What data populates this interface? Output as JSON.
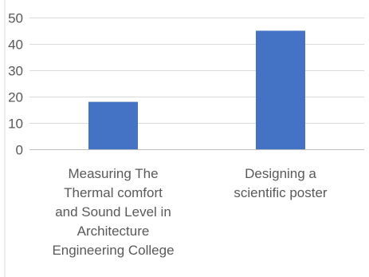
{
  "chart_data": {
    "type": "bar",
    "categories": [
      [
        "Measuring The",
        "Thermal comfort",
        "and Sound Level in",
        "Architecture",
        "Engineering College"
      ],
      [
        "Designing a",
        "scientific poster"
      ]
    ],
    "values": [
      18,
      45
    ],
    "yticks": [
      "0",
      "10",
      "20",
      "30",
      "40",
      "50"
    ],
    "ylim": [
      0,
      50
    ],
    "grid": true,
    "legend": "none",
    "title": "",
    "xlabel": "",
    "ylabel": "",
    "colors": {
      "bar": "#4472C4",
      "grid": "#D9D9D9",
      "axis": "#BFBFBF",
      "text": "#595959",
      "frame": "#D9D9D9"
    }
  }
}
